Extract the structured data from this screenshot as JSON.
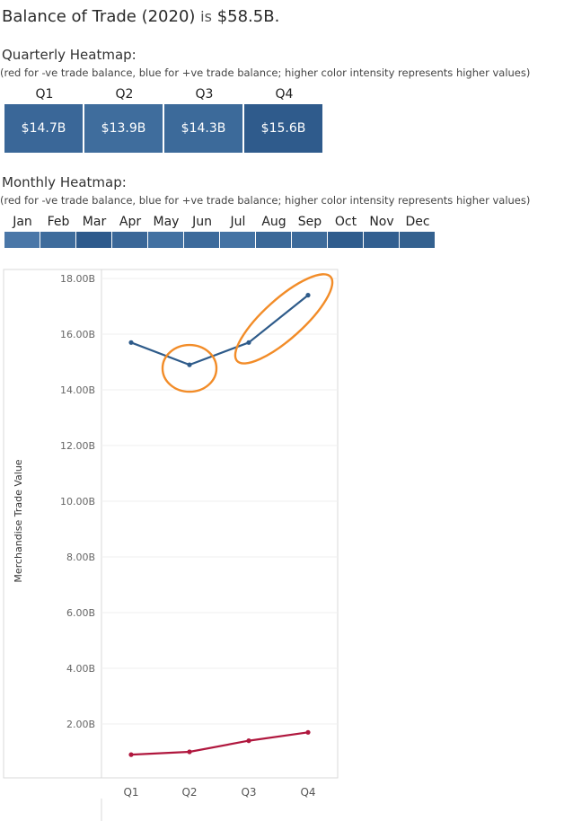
{
  "header": {
    "title_prefix": "Balance of Trade (2020)",
    "title_is": "is",
    "title_value": "$58.5B."
  },
  "quarterly": {
    "title": "Quarterly Heatmap:",
    "subtitle": "(red for -ve trade balance, blue for +ve trade balance; higher color intensity represents higher values)",
    "quarters": [
      "Q1",
      "Q2",
      "Q3",
      "Q4"
    ],
    "values": [
      "$14.7B",
      "$13.9B",
      "$14.3B",
      "$15.6B"
    ],
    "colors": [
      "#3a6798",
      "#3f6d9d",
      "#3c6a9a",
      "#2f5b8c"
    ]
  },
  "monthly": {
    "title": "Monthly Heatmap:",
    "subtitle": "(red for -ve trade balance, blue for +ve trade balance; higher color intensity represents higher values)",
    "months": [
      "Jan",
      "Feb",
      "Mar",
      "Apr",
      "May",
      "Jun",
      "Jul",
      "Aug",
      "Sep",
      "Oct",
      "Nov",
      "Dec"
    ],
    "colors": [
      "#4a77a8",
      "#3e6c9c",
      "#2d5a8c",
      "#3a6798",
      "#4271a2",
      "#3c6a9b",
      "#4473a4",
      "#3a6898",
      "#3d6b9b",
      "#2f5c8d",
      "#325f90",
      "#34618f"
    ]
  },
  "chart_data": {
    "type": "line",
    "title": "",
    "xlabel": "",
    "ylabel": "Merchandise Trade Value",
    "categories": [
      "Q1",
      "Q2",
      "Q3",
      "Q4"
    ],
    "y_ticks": [
      "18.00B",
      "16.00B",
      "14.00B",
      "12.00B",
      "10.00B",
      "8.00B",
      "6.00B",
      "4.00B",
      "2.00B"
    ],
    "ylim": [
      0,
      18
    ],
    "grid": true,
    "series": [
      {
        "color": "#2e5b8a",
        "values": [
          15.7,
          14.9,
          15.7,
          17.4
        ]
      },
      {
        "color": "#b0173e",
        "values": [
          0.9,
          1.0,
          1.4,
          1.7
        ]
      }
    ],
    "annotation_color": "#f28c28"
  }
}
